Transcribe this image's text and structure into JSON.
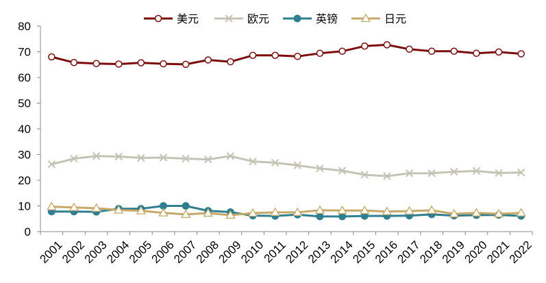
{
  "chart_data": {
    "type": "line",
    "title": "",
    "xlabel": "",
    "ylabel": "",
    "ylim": [
      0,
      80
    ],
    "yticks": [
      "0",
      "10",
      "20",
      "30",
      "40",
      "50",
      "60",
      "70",
      "80"
    ],
    "categories": [
      "2001",
      "2002",
      "2003",
      "2004",
      "2005",
      "2006",
      "2007",
      "2008",
      "2009",
      "2010",
      "2011",
      "2012",
      "2013",
      "2014",
      "2015",
      "2016",
      "2017",
      "2018",
      "2019",
      "2020",
      "2021",
      "2022"
    ],
    "grid": false,
    "legend_position": "top",
    "series": [
      {
        "name": "美元",
        "color": "#7b0c0c",
        "marker": "circle-open",
        "values": [
          68.0,
          65.8,
          65.4,
          65.2,
          65.7,
          65.3,
          65.1,
          66.8,
          66.1,
          68.6,
          68.6,
          68.2,
          69.4,
          70.2,
          72.2,
          72.7,
          71.0,
          70.2,
          70.2,
          69.4,
          69.9,
          69.2
        ]
      },
      {
        "name": "欧元",
        "color": "#c4c3b6",
        "marker": "x",
        "values": [
          26.2,
          28.4,
          29.4,
          29.2,
          28.7,
          28.8,
          28.4,
          28.1,
          29.4,
          27.3,
          26.8,
          25.8,
          24.6,
          23.7,
          22.1,
          21.6,
          22.7,
          22.7,
          23.3,
          23.6,
          22.8,
          23.0
        ]
      },
      {
        "name": "英镑",
        "color": "#2f7f91",
        "marker": "circle-filled",
        "values": [
          7.8,
          7.8,
          7.7,
          8.9,
          8.9,
          10.0,
          10.0,
          8.1,
          7.6,
          6.2,
          6.1,
          6.6,
          5.9,
          5.9,
          6.1,
          6.1,
          6.2,
          6.7,
          6.2,
          6.4,
          6.5,
          6.1
        ]
      },
      {
        "name": "日元",
        "color": "#c6a869",
        "marker": "triangle-open",
        "values": [
          9.7,
          9.4,
          9.1,
          8.4,
          8.1,
          7.3,
          6.7,
          7.2,
          6.4,
          7.2,
          7.5,
          7.5,
          8.3,
          8.2,
          8.2,
          7.8,
          8.0,
          8.3,
          6.9,
          7.3,
          6.9,
          7.3
        ]
      }
    ]
  }
}
